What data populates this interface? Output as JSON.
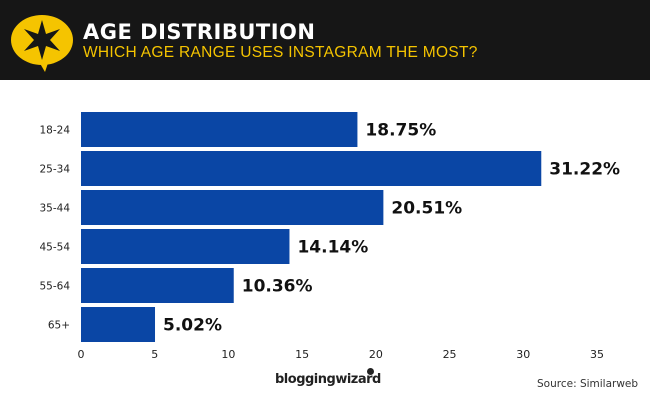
{
  "header": {
    "title": "AGE DISTRIBUTION",
    "subtitle": "WHICH AGE RANGE USES INSTAGRAM THE MOST?",
    "logo_icon": "star-speech-bubble-icon",
    "accent": "#f5c400",
    "background": "#161616"
  },
  "footer": {
    "brand": "bloggingwizard",
    "source": "Source: Similarweb"
  },
  "chart_data": {
    "type": "bar",
    "orientation": "horizontal",
    "categories": [
      "18-24",
      "25-34",
      "35-44",
      "45-54",
      "55-64",
      "65+"
    ],
    "values": [
      18.75,
      31.22,
      20.51,
      14.14,
      10.36,
      5.02
    ],
    "data_labels": [
      "18.75%",
      "31.22%",
      "20.51%",
      "14.14%",
      "10.36%",
      "5.02%"
    ],
    "xlim": [
      0,
      35
    ],
    "xticks": [
      "0",
      "5",
      "10",
      "15",
      "20",
      "25",
      "30",
      "35"
    ],
    "grid": false,
    "bar_color": "#0a46a5"
  }
}
